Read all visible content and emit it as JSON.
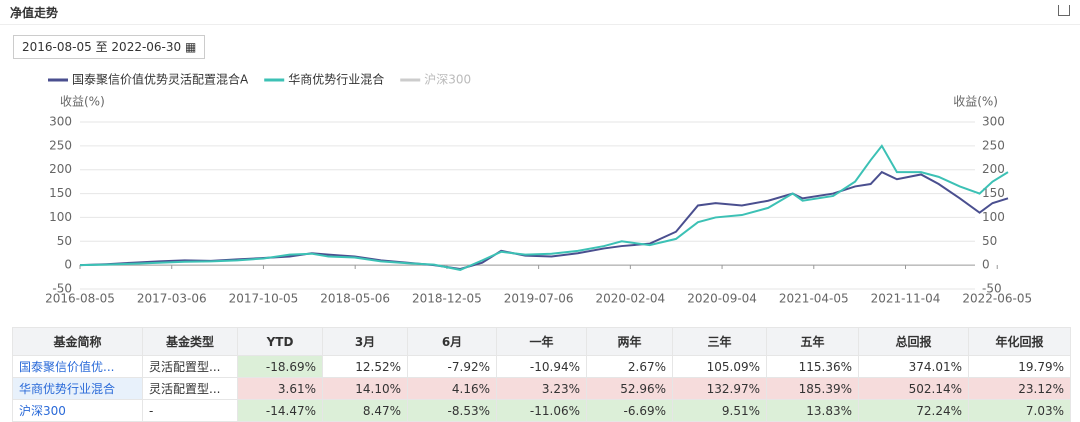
{
  "header": {
    "title": "净值走势"
  },
  "date_range": {
    "start": "2016-08-05",
    "sep": "至",
    "end": "2022-06-30"
  },
  "chart_data": {
    "type": "line",
    "ylabel": "收益(%)",
    "y2label": "收益(%)",
    "x": [
      "2016-08-05",
      "2016-10-05",
      "2016-12-05",
      "2017-02-05",
      "2017-04-05",
      "2017-06-05",
      "2017-08-05",
      "2017-10-05",
      "2017-12-05",
      "2018-01-25",
      "2018-03-05",
      "2018-05-05",
      "2018-07-05",
      "2018-09-05",
      "2018-11-05",
      "2019-01-05",
      "2019-02-25",
      "2019-04-10",
      "2019-06-05",
      "2019-08-05",
      "2019-10-05",
      "2019-12-05",
      "2020-01-15",
      "2020-03-20",
      "2020-05-20",
      "2020-07-10",
      "2020-08-20",
      "2020-10-20",
      "2020-12-20",
      "2021-02-15",
      "2021-03-10",
      "2021-05-20",
      "2021-07-10",
      "2021-08-15",
      "2021-09-10",
      "2021-10-15",
      "2021-12-10",
      "2022-01-20",
      "2022-03-10",
      "2022-04-25",
      "2022-05-25",
      "2022-06-30"
    ],
    "series": [
      {
        "name": "国泰聚信价值优势灵活配置混合A",
        "color": "#4a4f8f",
        "values": [
          0,
          2,
          5,
          8,
          10,
          9,
          12,
          15,
          18,
          25,
          22,
          18,
          10,
          5,
          0,
          -8,
          5,
          30,
          20,
          18,
          25,
          35,
          40,
          45,
          70,
          125,
          130,
          125,
          135,
          150,
          140,
          150,
          165,
          170,
          195,
          180,
          190,
          170,
          140,
          110,
          130,
          140
        ]
      },
      {
        "name": "华商优势行业混合",
        "color": "#3cc1b5",
        "values": [
          0,
          1,
          3,
          5,
          7,
          8,
          10,
          14,
          22,
          24,
          18,
          16,
          8,
          4,
          1,
          -10,
          10,
          28,
          22,
          24,
          30,
          40,
          50,
          42,
          55,
          90,
          100,
          105,
          120,
          150,
          135,
          145,
          175,
          220,
          250,
          195,
          195,
          185,
          165,
          150,
          175,
          195
        ]
      },
      {
        "name": "沪深300",
        "color": "#cccccc",
        "visible": false
      }
    ],
    "xlim": [
      "2016-08-05",
      "2022-06-30"
    ],
    "xticks": [
      "2016-08-05",
      "2017-03-06",
      "2017-10-05",
      "2018-05-06",
      "2018-12-05",
      "2019-07-06",
      "2020-02-04",
      "2020-09-04",
      "2021-04-05",
      "2021-11-04",
      "2022-06-05"
    ],
    "ylim": [
      -50,
      300
    ],
    "yticks": [
      -50,
      0,
      50,
      100,
      150,
      200,
      250,
      300
    ],
    "y2lim": [
      -50,
      300
    ],
    "y2ticks": [
      -50,
      0,
      50,
      100,
      150,
      200,
      250,
      300
    ],
    "grid": true
  },
  "table": {
    "columns": [
      "基金简称",
      "基金类型",
      "YTD",
      "3月",
      "6月",
      "一年",
      "两年",
      "三年",
      "五年",
      "总回报",
      "年化回报"
    ],
    "rows": [
      [
        "国泰聚信价值优...",
        "灵活配置型...",
        "-18.69%",
        "12.52%",
        "-7.92%",
        "-10.94%",
        "2.67%",
        "105.09%",
        "115.36%",
        "374.01%",
        "19.79%"
      ],
      [
        "华商优势行业混合",
        "灵活配置型...",
        "3.61%",
        "14.10%",
        "4.16%",
        "3.23%",
        "52.96%",
        "132.97%",
        "185.39%",
        "502.14%",
        "23.12%"
      ],
      [
        "沪深300",
        "-",
        "-14.47%",
        "8.47%",
        "-8.53%",
        "-11.06%",
        "-6.69%",
        "9.51%",
        "13.83%",
        "72.24%",
        "7.03%"
      ]
    ],
    "cell_fills": [
      [
        "#ffffff",
        "#ffffff",
        "#dcefd8",
        "#ffffff",
        "#ffffff",
        "#ffffff",
        "#ffffff",
        "#ffffff",
        "#ffffff",
        "#ffffff",
        "#ffffff"
      ],
      [
        "#e8f1fb",
        "#ffffff",
        "#f6dcdc",
        "#f6dcdc",
        "#f6dcdc",
        "#f6dcdc",
        "#f6dcdc",
        "#f6dcdc",
        "#f6dcdc",
        "#f6dcdc",
        "#f6dcdc"
      ],
      [
        "#ffffff",
        "#ffffff",
        "#dcefd8",
        "#dcefd8",
        "#dcefd8",
        "#dcefd8",
        "#dcefd8",
        "#dcefd8",
        "#dcefd8",
        "#dcefd8",
        "#dcefd8"
      ]
    ]
  }
}
